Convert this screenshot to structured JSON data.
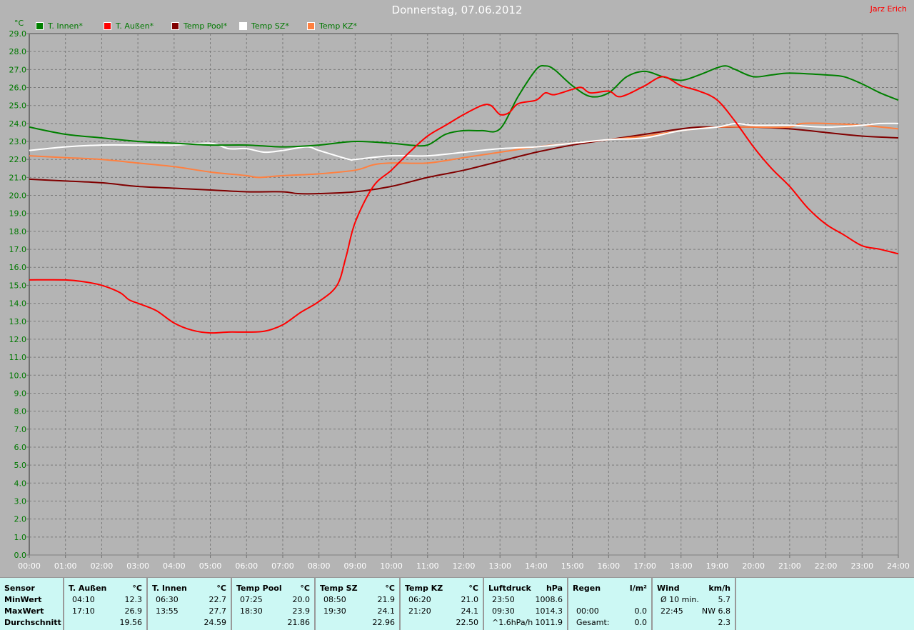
{
  "header": {
    "title": "Donnerstag, 07.06.2012",
    "author": "Jarz Erich"
  },
  "legend": [
    {
      "label": "T. Innen*",
      "color": "#008000"
    },
    {
      "label": "T. Außen*",
      "color": "#ff0000"
    },
    {
      "label": "Temp Pool*",
      "color": "#800000"
    },
    {
      "label": "Temp SZ*",
      "color": "#ffffff"
    },
    {
      "label": "Temp KZ*",
      "color": "#ff8040"
    }
  ],
  "chart_data": {
    "type": "line",
    "ylabel": "°C",
    "ylim": [
      0,
      29
    ],
    "xlim": [
      "00:00",
      "24:00"
    ],
    "grid": true,
    "legend_position": "top-left",
    "y_ticks": [
      "0.0",
      "1.0",
      "2.0",
      "3.0",
      "4.0",
      "5.0",
      "6.0",
      "7.0",
      "8.0",
      "9.0",
      "10.0",
      "11.0",
      "12.0",
      "13.0",
      "14.0",
      "15.0",
      "16.0",
      "17.0",
      "18.0",
      "19.0",
      "20.0",
      "21.0",
      "22.0",
      "23.0",
      "24.0",
      "25.0",
      "26.0",
      "27.0",
      "28.0",
      "29.0"
    ],
    "x_ticks": [
      "00:00",
      "01:00",
      "02:00",
      "03:00",
      "04:00",
      "05:00",
      "06:00",
      "07:00",
      "08:00",
      "09:00",
      "10:00",
      "11:00",
      "12:00",
      "13:00",
      "14:00",
      "15:00",
      "16:00",
      "17:00",
      "18:00",
      "19:00",
      "20:00",
      "21:00",
      "22:00",
      "23:00",
      "24:00"
    ],
    "series": [
      {
        "name": "T. Innen*",
        "color": "#008000",
        "points": [
          [
            "00:00",
            23.8
          ],
          [
            "01:00",
            23.4
          ],
          [
            "02:00",
            23.2
          ],
          [
            "03:00",
            23.0
          ],
          [
            "04:00",
            22.9
          ],
          [
            "05:00",
            22.8
          ],
          [
            "06:00",
            22.8
          ],
          [
            "07:00",
            22.7
          ],
          [
            "08:00",
            22.8
          ],
          [
            "09:00",
            23.0
          ],
          [
            "10:00",
            22.9
          ],
          [
            "10:30",
            22.8
          ],
          [
            "11:00",
            22.8
          ],
          [
            "11:30",
            23.4
          ],
          [
            "12:00",
            23.6
          ],
          [
            "12:30",
            23.6
          ],
          [
            "13:00",
            23.7
          ],
          [
            "13:30",
            25.5
          ],
          [
            "14:00",
            27.0
          ],
          [
            "14:15",
            27.2
          ],
          [
            "14:30",
            27.0
          ],
          [
            "15:00",
            26.1
          ],
          [
            "15:30",
            25.5
          ],
          [
            "16:00",
            25.7
          ],
          [
            "16:30",
            26.6
          ],
          [
            "17:00",
            26.9
          ],
          [
            "17:30",
            26.6
          ],
          [
            "18:00",
            26.4
          ],
          [
            "18:30",
            26.7
          ],
          [
            "19:00",
            27.1
          ],
          [
            "19:15",
            27.2
          ],
          [
            "19:30",
            27.0
          ],
          [
            "20:00",
            26.6
          ],
          [
            "20:30",
            26.7
          ],
          [
            "21:00",
            26.8
          ],
          [
            "22:00",
            26.7
          ],
          [
            "22:30",
            26.6
          ],
          [
            "23:00",
            26.2
          ],
          [
            "23:30",
            25.7
          ],
          [
            "24:00",
            25.3
          ]
        ]
      },
      {
        "name": "T. Außen*",
        "color": "#ff0000",
        "points": [
          [
            "00:00",
            15.3
          ],
          [
            "01:00",
            15.3
          ],
          [
            "01:30",
            15.2
          ],
          [
            "02:00",
            15.0
          ],
          [
            "02:30",
            14.6
          ],
          [
            "02:45",
            14.2
          ],
          [
            "03:00",
            14.0
          ],
          [
            "03:30",
            13.6
          ],
          [
            "04:00",
            12.9
          ],
          [
            "04:30",
            12.5
          ],
          [
            "05:00",
            12.35
          ],
          [
            "05:30",
            12.4
          ],
          [
            "06:00",
            12.4
          ],
          [
            "06:30",
            12.45
          ],
          [
            "07:00",
            12.8
          ],
          [
            "07:30",
            13.5
          ],
          [
            "08:00",
            14.1
          ],
          [
            "08:30",
            15.0
          ],
          [
            "08:45",
            16.6
          ],
          [
            "09:00",
            18.5
          ],
          [
            "09:30",
            20.5
          ],
          [
            "10:00",
            21.4
          ],
          [
            "10:30",
            22.4
          ],
          [
            "11:00",
            23.3
          ],
          [
            "11:30",
            23.9
          ],
          [
            "12:00",
            24.5
          ],
          [
            "12:30",
            25.0
          ],
          [
            "12:45",
            25.0
          ],
          [
            "13:00",
            24.5
          ],
          [
            "13:15",
            24.6
          ],
          [
            "13:30",
            25.1
          ],
          [
            "14:00",
            25.3
          ],
          [
            "14:15",
            25.7
          ],
          [
            "14:30",
            25.6
          ],
          [
            "15:00",
            25.9
          ],
          [
            "15:15",
            26.0
          ],
          [
            "15:30",
            25.7
          ],
          [
            "16:00",
            25.8
          ],
          [
            "16:15",
            25.5
          ],
          [
            "16:30",
            25.6
          ],
          [
            "17:00",
            26.1
          ],
          [
            "17:30",
            26.6
          ],
          [
            "18:00",
            26.1
          ],
          [
            "18:30",
            25.8
          ],
          [
            "19:00",
            25.3
          ],
          [
            "19:30",
            24.1
          ],
          [
            "20:00",
            22.7
          ],
          [
            "20:30",
            21.5
          ],
          [
            "21:00",
            20.5
          ],
          [
            "21:30",
            19.3
          ],
          [
            "22:00",
            18.4
          ],
          [
            "22:30",
            17.8
          ],
          [
            "23:00",
            17.2
          ],
          [
            "23:30",
            17.0
          ],
          [
            "24:00",
            16.75
          ]
        ]
      },
      {
        "name": "Temp Pool*",
        "color": "#800000",
        "points": [
          [
            "00:00",
            20.9
          ],
          [
            "01:00",
            20.8
          ],
          [
            "02:00",
            20.7
          ],
          [
            "03:00",
            20.5
          ],
          [
            "04:00",
            20.4
          ],
          [
            "05:00",
            20.3
          ],
          [
            "06:00",
            20.2
          ],
          [
            "07:00",
            20.2
          ],
          [
            "07:25",
            20.1
          ],
          [
            "08:00",
            20.1
          ],
          [
            "09:00",
            20.2
          ],
          [
            "10:00",
            20.5
          ],
          [
            "11:00",
            21.0
          ],
          [
            "12:00",
            21.4
          ],
          [
            "13:00",
            21.9
          ],
          [
            "14:00",
            22.4
          ],
          [
            "15:00",
            22.8
          ],
          [
            "16:00",
            23.1
          ],
          [
            "17:00",
            23.4
          ],
          [
            "18:00",
            23.7
          ],
          [
            "18:30",
            23.8
          ],
          [
            "19:00",
            23.8
          ],
          [
            "20:00",
            23.8
          ],
          [
            "21:00",
            23.7
          ],
          [
            "22:00",
            23.5
          ],
          [
            "23:00",
            23.3
          ],
          [
            "24:00",
            23.2
          ]
        ]
      },
      {
        "name": "Temp SZ*",
        "color": "#ffffff",
        "points": [
          [
            "00:00",
            22.5
          ],
          [
            "01:00",
            22.7
          ],
          [
            "02:00",
            22.8
          ],
          [
            "03:00",
            22.8
          ],
          [
            "04:00",
            22.8
          ],
          [
            "05:00",
            22.9
          ],
          [
            "05:30",
            22.6
          ],
          [
            "06:00",
            22.6
          ],
          [
            "06:30",
            22.4
          ],
          [
            "07:00",
            22.5
          ],
          [
            "07:40",
            22.7
          ],
          [
            "08:00",
            22.5
          ],
          [
            "08:50",
            22.0
          ],
          [
            "09:00",
            22.0
          ],
          [
            "10:00",
            22.2
          ],
          [
            "11:00",
            22.2
          ],
          [
            "12:00",
            22.4
          ],
          [
            "13:00",
            22.6
          ],
          [
            "14:00",
            22.7
          ],
          [
            "15:00",
            22.9
          ],
          [
            "16:00",
            23.1
          ],
          [
            "17:00",
            23.2
          ],
          [
            "18:00",
            23.6
          ],
          [
            "19:00",
            23.8
          ],
          [
            "19:30",
            24.0
          ],
          [
            "20:00",
            23.9
          ],
          [
            "21:00",
            23.9
          ],
          [
            "22:00",
            23.8
          ],
          [
            "23:00",
            23.9
          ],
          [
            "23:30",
            24.0
          ],
          [
            "24:00",
            24.0
          ]
        ]
      },
      {
        "name": "Temp KZ*",
        "color": "#ff8040",
        "points": [
          [
            "00:00",
            22.2
          ],
          [
            "01:00",
            22.1
          ],
          [
            "02:00",
            22.0
          ],
          [
            "03:00",
            21.8
          ],
          [
            "04:00",
            21.6
          ],
          [
            "05:00",
            21.3
          ],
          [
            "06:00",
            21.1
          ],
          [
            "06:20",
            21.0
          ],
          [
            "07:00",
            21.1
          ],
          [
            "08:00",
            21.2
          ],
          [
            "09:00",
            21.4
          ],
          [
            "09:30",
            21.7
          ],
          [
            "10:00",
            21.8
          ],
          [
            "11:00",
            21.8
          ],
          [
            "12:00",
            22.1
          ],
          [
            "13:00",
            22.4
          ],
          [
            "14:00",
            22.7
          ],
          [
            "15:00",
            22.9
          ],
          [
            "16:00",
            23.1
          ],
          [
            "17:00",
            23.3
          ],
          [
            "18:00",
            23.6
          ],
          [
            "19:00",
            23.8
          ],
          [
            "20:00",
            23.8
          ],
          [
            "21:00",
            23.8
          ],
          [
            "21:20",
            24.0
          ],
          [
            "22:00",
            24.0
          ],
          [
            "23:00",
            23.9
          ],
          [
            "24:00",
            23.7
          ]
        ]
      }
    ]
  },
  "stats": {
    "labels": {
      "h": "Sensor",
      "r1": "MinWert",
      "r2": "MaxWert",
      "r3": "Durchschnitt"
    },
    "columns": [
      {
        "name": "T. Außen",
        "unit": "°C",
        "r1": [
          "04:10",
          "12.3"
        ],
        "r2": [
          "17:10",
          "26.9"
        ],
        "r3": [
          "",
          "19.56"
        ]
      },
      {
        "name": "T. Innen",
        "unit": "°C",
        "r1": [
          "06:30",
          "22.7"
        ],
        "r2": [
          "13:55",
          "27.7"
        ],
        "r3": [
          "",
          "24.59"
        ]
      },
      {
        "name": "Temp Pool",
        "unit": "°C",
        "r1": [
          "07:25",
          "20.0"
        ],
        "r2": [
          "18:30",
          "23.9"
        ],
        "r3": [
          "",
          "21.86"
        ]
      },
      {
        "name": "Temp SZ",
        "unit": "°C",
        "r1": [
          "08:50",
          "21.9"
        ],
        "r2": [
          "19:30",
          "24.1"
        ],
        "r3": [
          "",
          "22.96"
        ]
      },
      {
        "name": "Temp KZ",
        "unit": "°C",
        "r1": [
          "06:20",
          "21.0"
        ],
        "r2": [
          "21:20",
          "24.1"
        ],
        "r3": [
          "",
          "22.50"
        ]
      },
      {
        "name": "Luftdruck",
        "unit": "hPa",
        "r1": [
          "23:50",
          "1008.6"
        ],
        "r2": [
          "09:30",
          "1014.3"
        ],
        "r3": [
          "^1.6hPa/h",
          "1011.9"
        ]
      },
      {
        "name": "Regen",
        "unit": "l/m²",
        "r1": [
          "",
          ""
        ],
        "r2": [
          "00:00",
          "0.0"
        ],
        "r3": [
          "Gesamt:",
          "0.0"
        ]
      },
      {
        "name": "Wind",
        "unit": "km/h",
        "r1": [
          "Ø 10 min.",
          "5.7"
        ],
        "r2": [
          "22:45",
          "NW 6.8"
        ],
        "r3": [
          "",
          "2.3"
        ]
      }
    ]
  }
}
